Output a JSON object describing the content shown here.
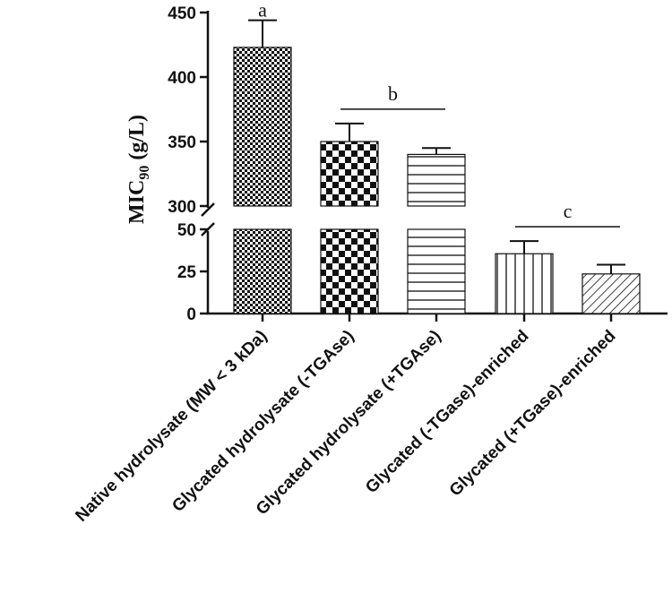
{
  "chart_data": {
    "type": "bar",
    "categories": [
      "Native hydrolysate (MW < 3 kDa)",
      "Glycated hydrolysate (-TGAse)",
      "Glycated hydrolysate (+TGAse)",
      "Glycated (-TGase)-enriched",
      "Glycated (+TGase)-enriched"
    ],
    "values": [
      423,
      350,
      340,
      35.5,
      23.5
    ],
    "errors": [
      21,
      14,
      5,
      7.5,
      5.5
    ],
    "patterns": [
      "fine-checker",
      "coarse-checker",
      "horizontal-lines",
      "vertical-lines",
      "diagonal-lines"
    ],
    "ylabel": {
      "main": "MIC",
      "sub": "90",
      "unit": " (g/L)"
    },
    "axis_break": true,
    "ylim_lower": [
      0,
      50
    ],
    "ylim_upper": [
      300,
      450
    ],
    "yticks_lower": [
      "0",
      "25",
      "50"
    ],
    "yticks_upper": [
      "300",
      "350",
      "400",
      "450"
    ],
    "significance": [
      {
        "letter": "a",
        "bars": [
          0
        ]
      },
      {
        "letter": "b",
        "bars": [
          1,
          2
        ]
      },
      {
        "letter": "c",
        "bars": [
          3,
          4
        ]
      }
    ],
    "grid": false,
    "colors": {
      "bar_fill": "#111111",
      "background": "#ffffff"
    }
  }
}
